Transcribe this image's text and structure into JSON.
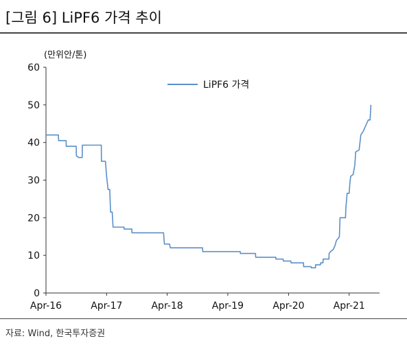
{
  "header": {
    "title": "[그림 6] LiPF6 가격 추이"
  },
  "footer": {
    "source": "자료: Wind, 한국투자증권"
  },
  "chart_data": {
    "type": "line",
    "title": "",
    "ylabel": "(만위안/톤)",
    "xlabel": "",
    "ylim": [
      0,
      60
    ],
    "yticks": [
      0,
      10,
      20,
      30,
      40,
      50,
      60
    ],
    "xticks": [
      "Apr-16",
      "Apr-17",
      "Apr-18",
      "Apr-19",
      "Apr-20",
      "Apr-21"
    ],
    "legend": "top-center",
    "color": "#5B8FC7",
    "series": [
      {
        "name": "LiPF6 가격",
        "points": [
          [
            "2016-04-01",
            42
          ],
          [
            "2016-06-15",
            42
          ],
          [
            "2016-06-16",
            40.5
          ],
          [
            "2016-07-31",
            40.5
          ],
          [
            "2016-08-01",
            39
          ],
          [
            "2016-09-30",
            39
          ],
          [
            "2016-10-01",
            36.5
          ],
          [
            "2016-10-15",
            36
          ],
          [
            "2016-11-05",
            36
          ],
          [
            "2016-11-06",
            39.3
          ],
          [
            "2017-02-28",
            39.3
          ],
          [
            "2017-03-01",
            35
          ],
          [
            "2017-03-25",
            35
          ],
          [
            "2017-04-01",
            31
          ],
          [
            "2017-04-10",
            27.5
          ],
          [
            "2017-04-20",
            27.5
          ],
          [
            "2017-04-25",
            21.5
          ],
          [
            "2017-05-05",
            21.5
          ],
          [
            "2017-05-10",
            17.5
          ],
          [
            "2017-07-15",
            17.5
          ],
          [
            "2017-07-16",
            17
          ],
          [
            "2017-08-31",
            17
          ],
          [
            "2017-09-01",
            16
          ],
          [
            "2018-03-10",
            16
          ],
          [
            "2018-03-15",
            13
          ],
          [
            "2018-04-15",
            13
          ],
          [
            "2018-04-20",
            12
          ],
          [
            "2018-10-31",
            12
          ],
          [
            "2018-11-01",
            11
          ],
          [
            "2019-06-15",
            11
          ],
          [
            "2019-06-16",
            10.5
          ],
          [
            "2019-09-15",
            10.5
          ],
          [
            "2019-09-16",
            9.5
          ],
          [
            "2020-01-15",
            9.5
          ],
          [
            "2020-01-16",
            9
          ],
          [
            "2020-02-28",
            9
          ],
          [
            "2020-03-01",
            8.5
          ],
          [
            "2020-04-15",
            8.5
          ],
          [
            "2020-04-16",
            8
          ],
          [
            "2020-06-30",
            8
          ],
          [
            "2020-07-01",
            7
          ],
          [
            "2020-08-15",
            7
          ],
          [
            "2020-08-16",
            6.7
          ],
          [
            "2020-09-10",
            6.7
          ],
          [
            "2020-09-11",
            7.5
          ],
          [
            "2020-10-10",
            7.5
          ],
          [
            "2020-10-11",
            8
          ],
          [
            "2020-10-25",
            8
          ],
          [
            "2020-10-26",
            9
          ],
          [
            "2020-11-30",
            9
          ],
          [
            "2020-12-01",
            10.5
          ],
          [
            "2020-12-10",
            11
          ],
          [
            "2020-12-25",
            11.5
          ],
          [
            "2021-01-05",
            12.5
          ],
          [
            "2021-01-15",
            14
          ],
          [
            "2021-01-25",
            14.5
          ],
          [
            "2021-02-01",
            15
          ],
          [
            "2021-02-05",
            20
          ],
          [
            "2021-03-10",
            20
          ],
          [
            "2021-03-12",
            22.5
          ],
          [
            "2021-03-20",
            26.5
          ],
          [
            "2021-04-01",
            26.5
          ],
          [
            "2021-04-05",
            29
          ],
          [
            "2021-04-10",
            31
          ],
          [
            "2021-04-25",
            31.5
          ],
          [
            "2021-05-05",
            34
          ],
          [
            "2021-05-10",
            37.5
          ],
          [
            "2021-05-31",
            38
          ],
          [
            "2021-06-05",
            40
          ],
          [
            "2021-06-10",
            42
          ],
          [
            "2021-06-25",
            43
          ],
          [
            "2021-07-05",
            44
          ],
          [
            "2021-07-15",
            45
          ],
          [
            "2021-07-25",
            46
          ],
          [
            "2021-08-05",
            46
          ],
          [
            "2021-08-10",
            50
          ]
        ]
      }
    ]
  }
}
